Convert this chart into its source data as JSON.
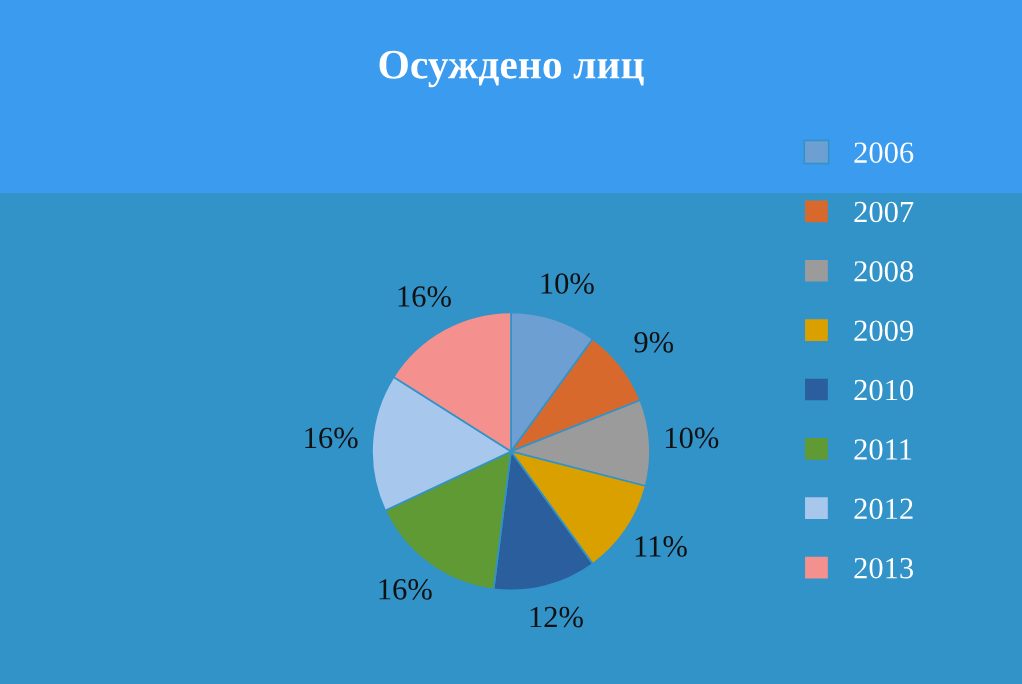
{
  "chart_data": {
    "type": "pie",
    "title": "Осуждено лиц",
    "categories": [
      "2006",
      "2007",
      "2008",
      "2009",
      "2010",
      "2011",
      "2012",
      "2013"
    ],
    "values": [
      10,
      9,
      10,
      11,
      12,
      16,
      16,
      16
    ],
    "colors": [
      "#6e9fd2",
      "#d8692c",
      "#9b9b9b",
      "#d9a000",
      "#2b5e9c",
      "#5f9a35",
      "#a8c7ec",
      "#f4918e"
    ],
    "value_labels": [
      "10%",
      "9%",
      "10%",
      "11%",
      "12%",
      "16%",
      "16%",
      "16%"
    ],
    "legend": "right"
  }
}
